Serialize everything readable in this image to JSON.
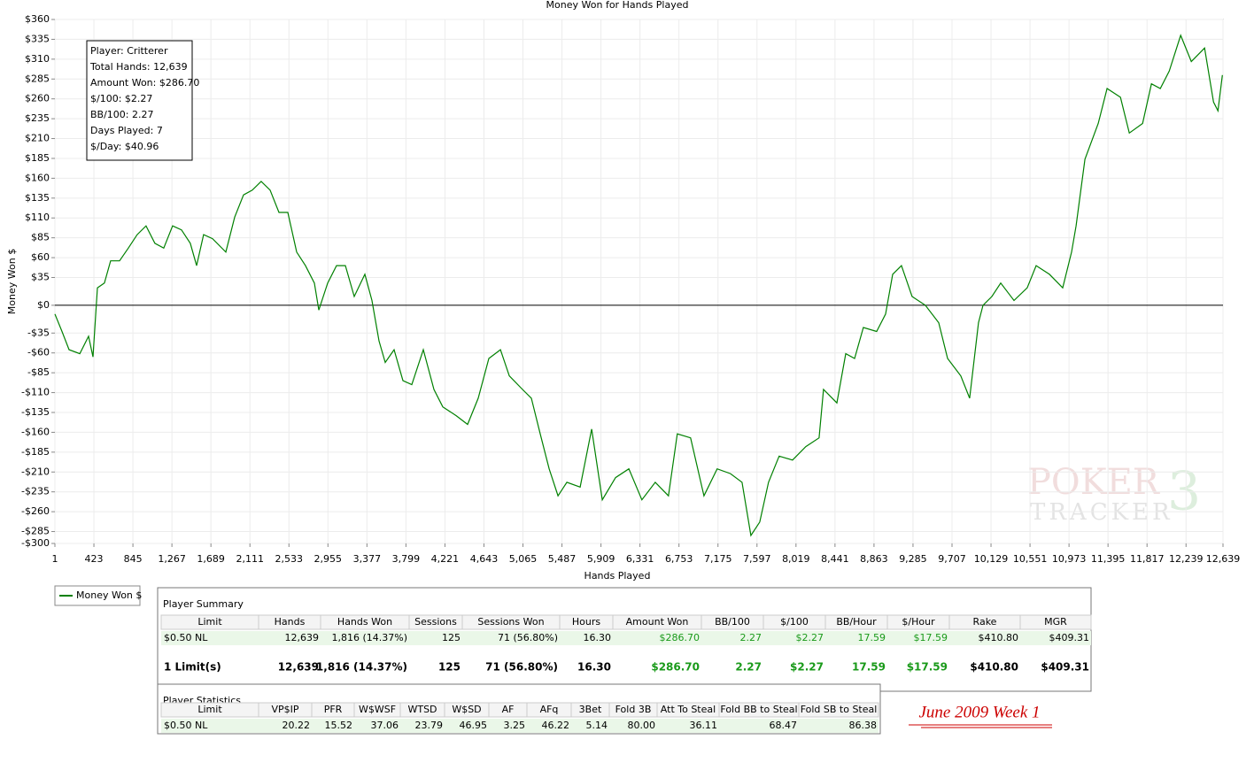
{
  "chart_data": {
    "type": "line",
    "title": "Money Won for Hands Played",
    "x_label": "Hands Played",
    "y_label": "Money Won $",
    "xlim": [
      1,
      12639
    ],
    "ylim": [
      -300,
      360
    ],
    "grid": true,
    "xticks": [
      1,
      423,
      845,
      {
        "value": 1267,
        "label": "1,267"
      },
      {
        "value": 1689,
        "label": "1,689"
      },
      {
        "value": 2111,
        "label": "2,111"
      },
      {
        "value": 2533,
        "label": "2,533"
      },
      {
        "value": 2955,
        "label": "2,955"
      },
      {
        "value": 3377,
        "label": "3,377"
      },
      {
        "value": 3799,
        "label": "3,799"
      },
      {
        "value": 4221,
        "label": "4,221"
      },
      {
        "value": 4643,
        "label": "4,643"
      },
      {
        "value": 5065,
        "label": "5,065"
      },
      {
        "value": 5487,
        "label": "5,487"
      },
      {
        "value": 5909,
        "label": "5,909"
      },
      {
        "value": 6331,
        "label": "6,331"
      },
      {
        "value": 6753,
        "label": "6,753"
      },
      {
        "value": 7175,
        "label": "7,175"
      },
      {
        "value": 7597,
        "label": "7,597"
      },
      {
        "value": 8019,
        "label": "8,019"
      },
      {
        "value": 8441,
        "label": "8,441"
      },
      {
        "value": 8863,
        "label": "8,863"
      },
      {
        "value": 9285,
        "label": "9,285"
      },
      {
        "value": 9707,
        "label": "9,707"
      },
      {
        "value": 10129,
        "label": "10,129"
      },
      {
        "value": 10551,
        "label": "10,551"
      },
      {
        "value": 10973,
        "label": "10,973"
      },
      {
        "value": 11395,
        "label": "11,395"
      },
      {
        "value": 11817,
        "label": "11,817"
      },
      {
        "value": 12239,
        "label": "12,239"
      },
      {
        "value": 12639,
        "label": "12,639"
      }
    ],
    "yticks": [
      {
        "value": 360,
        "label": "$360"
      },
      {
        "value": 335,
        "label": "$335"
      },
      {
        "value": 310,
        "label": "$310"
      },
      {
        "value": 285,
        "label": "$285"
      },
      {
        "value": 260,
        "label": "$260"
      },
      {
        "value": 235,
        "label": "$235"
      },
      {
        "value": 210,
        "label": "$210"
      },
      {
        "value": 185,
        "label": "$185"
      },
      {
        "value": 160,
        "label": "$160"
      },
      {
        "value": 135,
        "label": "$135"
      },
      {
        "value": 110,
        "label": "$110"
      },
      {
        "value": 85,
        "label": "$85"
      },
      {
        "value": 60,
        "label": "$60"
      },
      {
        "value": 35,
        "label": "$35"
      },
      {
        "value": 0,
        "label": "$0"
      },
      {
        "value": -35,
        "label": "-$35"
      },
      {
        "value": -60,
        "label": "-$60"
      },
      {
        "value": -85,
        "label": "-$85"
      },
      {
        "value": -110,
        "label": "-$110"
      },
      {
        "value": -135,
        "label": "-$135"
      },
      {
        "value": -160,
        "label": "-$160"
      },
      {
        "value": -185,
        "label": "-$185"
      },
      {
        "value": -210,
        "label": "-$210"
      },
      {
        "value": -235,
        "label": "-$235"
      },
      {
        "value": -260,
        "label": "-$260"
      },
      {
        "value": -285,
        "label": "-$285"
      },
      {
        "value": -300,
        "label": "-$300"
      }
    ],
    "x": [
      1,
      78,
      154,
      270,
      365,
      413,
      461,
      537,
      604,
      700,
      795,
      891,
      987,
      1083,
      1179,
      1274,
      1370,
      1466,
      1534,
      1610,
      1706,
      1850,
      1946,
      2042,
      2137,
      2233,
      2329,
      2425,
      2521,
      2617,
      2712,
      2808,
      2856,
      2952,
      3048,
      3144,
      3240,
      3355,
      3431,
      3508,
      3575,
      3671,
      3767,
      3862,
      3987,
      4102,
      4198,
      4342,
      4466,
      4581,
      4696,
      4821,
      4917,
      5060,
      5156,
      5252,
      5348,
      5444,
      5540,
      5684,
      5808,
      5923,
      6067,
      6211,
      6352,
      6496,
      6639,
      6735,
      6879,
      7023,
      7166,
      7310,
      7435,
      7531,
      7627,
      7722,
      7837,
      7981,
      8125,
      8269,
      8317,
      8461,
      8557,
      8653,
      8748,
      8892,
      8988,
      9065,
      9160,
      9275,
      9419,
      9563,
      9659,
      9802,
      9898,
      9994,
      10042,
      10138,
      10234,
      10378,
      10521,
      10617,
      10761,
      10905,
      11001,
      11049,
      11145,
      11289,
      11385,
      11529,
      11625,
      11769,
      11865,
      11961,
      12057,
      12181,
      12296,
      12440,
      12536,
      12584,
      12632
    ],
    "series": [
      {
        "name": "Money Won $",
        "color": "#008000",
        "values": [
          -11,
          -33,
          -56,
          -61,
          -39,
          -65,
          22,
          28,
          56,
          56,
          72,
          89,
          100,
          78,
          72,
          100,
          95,
          78,
          50,
          89,
          84,
          67,
          111,
          139,
          145,
          156,
          145,
          117,
          117,
          67,
          50,
          28,
          -6,
          28,
          50,
          50,
          11,
          39,
          6,
          -45,
          -72,
          -56,
          -95,
          -100,
          -56,
          -106,
          -128,
          -139,
          -150,
          -117,
          -67,
          -56,
          -89,
          -106,
          -117,
          -162,
          -206,
          -240,
          -223,
          -229,
          -156,
          -245,
          -217,
          -206,
          -245,
          -223,
          -240,
          -162,
          -167,
          -240,
          -206,
          -212,
          -223,
          -290,
          -273,
          -223,
          -190,
          -195,
          -178,
          -167,
          -106,
          -123,
          -61,
          -67,
          -28,
          -33,
          -11,
          39,
          50,
          11,
          0,
          -22,
          -67,
          -89,
          -117,
          -22,
          0,
          11,
          28,
          6,
          22,
          50,
          39,
          22,
          67,
          100,
          184,
          229,
          273,
          262,
          217,
          229,
          279,
          273,
          295,
          340,
          307,
          324,
          256,
          245,
          290
        ]
      }
    ]
  },
  "info_box": [
    "Player: Critterer",
    "Total Hands: 12,639",
    "Amount Won: $286.70",
    "$/100: $2.27",
    "BB/100: 2.27",
    "Days Played: 7",
    "$/Day: $40.96"
  ],
  "player_summary": {
    "title": "Player Summary",
    "columns": [
      {
        "name": "Limit"
      },
      {
        "name": "Hands"
      },
      {
        "name": "Hands Won"
      },
      {
        "name": "Sessions"
      },
      {
        "name": "Sessions Won"
      },
      {
        "name": "Hours"
      },
      {
        "name": "Amount Won",
        "color": "#1a9a1a"
      },
      {
        "name": "BB/100",
        "color": "#1a9a1a"
      },
      {
        "name": "$/100",
        "color": "#1a9a1a"
      },
      {
        "name": "BB/Hour",
        "color": "#1a9a1a"
      },
      {
        "name": "$/Hour",
        "color": "#1a9a1a"
      },
      {
        "name": "Rake"
      },
      {
        "name": "MGR"
      }
    ],
    "rows": [
      [
        "$0.50 NL",
        "12,639",
        "1,816 (14.37%)",
        "125",
        "71 (56.80%)",
        "16.30",
        "$286.70",
        "2.27",
        "$2.27",
        "17.59",
        "$17.59",
        "$410.80",
        "$409.31"
      ],
      [
        "1 Limit(s)",
        "12,639",
        "1,816 (14.37%)",
        "125",
        "71 (56.80%)",
        "16.30",
        "$286.70",
        "2.27",
        "$2.27",
        "17.59",
        "$17.59",
        "$410.80",
        "$409.31"
      ]
    ]
  },
  "player_statistics": {
    "title": "Player Statistics",
    "columns": [
      {
        "name": "Limit"
      },
      {
        "name": "VP$IP"
      },
      {
        "name": "PFR"
      },
      {
        "name": "W$WSF"
      },
      {
        "name": "WTSD"
      },
      {
        "name": "W$SD"
      },
      {
        "name": "AF"
      },
      {
        "name": "AFq"
      },
      {
        "name": "3Bet"
      },
      {
        "name": "Fold 3B"
      },
      {
        "name": "Att To Steal"
      },
      {
        "name": "Fold BB to Steal"
      },
      {
        "name": "Fold SB to Steal"
      }
    ],
    "rows": [
      [
        "$0.50 NL",
        "20.22",
        "15.52",
        "37.06",
        "23.79",
        "46.95",
        "3.25",
        "46.22",
        "5.14",
        "80.00",
        "36.11",
        "68.47",
        "86.38"
      ]
    ]
  },
  "note": "June 2009 Week 1",
  "watermark": [
    "POKER",
    "TRACKER",
    "3"
  ]
}
